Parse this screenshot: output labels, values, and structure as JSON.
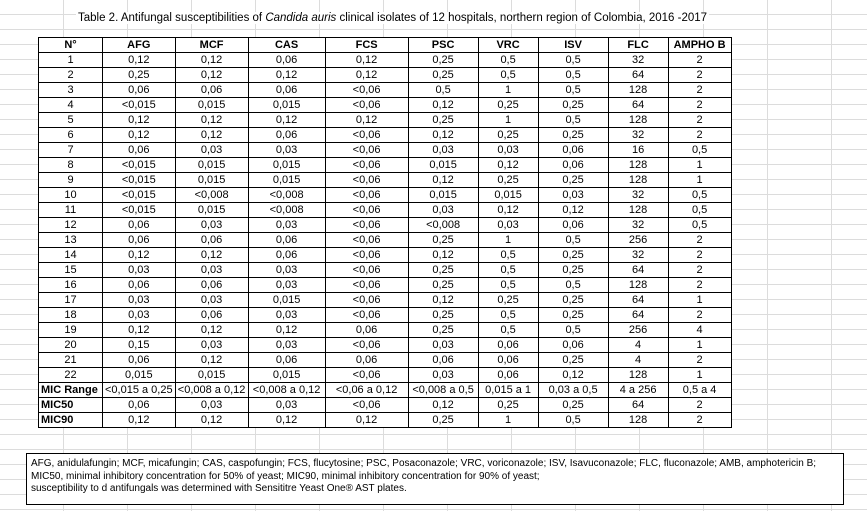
{
  "title": {
    "before": "Table 2. Antifungal susceptibilities of ",
    "italic": "Candida auris",
    "after": " clinical isolates of 12 hospitals, northern region of Colombia, 2016 -2017"
  },
  "table": {
    "header": [
      "N°",
      "AFG",
      "MCF",
      "CAS",
      "FCS",
      "PSC",
      "VRC",
      "ISV",
      "FLC",
      "AMPHO B"
    ],
    "rows": [
      [
        "1",
        "0,12",
        "0,12",
        "0,06",
        "0,12",
        "0,25",
        "0,5",
        "0,5",
        "32",
        "2"
      ],
      [
        "2",
        "0,25",
        "0,12",
        "0,12",
        "0,12",
        "0,25",
        "0,5",
        "0,5",
        "64",
        "2"
      ],
      [
        "3",
        "0,06",
        "0,06",
        "0,06",
        "<0,06",
        "0,5",
        "1",
        "0,5",
        "128",
        "2"
      ],
      [
        "4",
        "<0,015",
        "0,015",
        "0,015",
        "<0,06",
        "0,12",
        "0,25",
        "0,25",
        "64",
        "2"
      ],
      [
        "5",
        "0,12",
        "0,12",
        "0,12",
        "0,12",
        "0,25",
        "1",
        "0,5",
        "128",
        "2"
      ],
      [
        "6",
        "0,12",
        "0,12",
        "0,06",
        "<0,06",
        "0,12",
        "0,25",
        "0,25",
        "32",
        "2"
      ],
      [
        "7",
        "0,06",
        "0,03",
        "0,03",
        "<0,06",
        "0,03",
        "0,03",
        "0,06",
        "16",
        "0,5"
      ],
      [
        "8",
        "<0,015",
        "0,015",
        "0,015",
        "<0,06",
        "0,015",
        "0,12",
        "0,06",
        "128",
        "1"
      ],
      [
        "9",
        "<0,015",
        "0,015",
        "0,015",
        "<0,06",
        "0,12",
        "0,25",
        "0,25",
        "128",
        "1"
      ],
      [
        "10",
        "<0,015",
        "<0,008",
        "<0,008",
        "<0,06",
        "0,015",
        "0,015",
        "0,03",
        "32",
        "0,5"
      ],
      [
        "11",
        "<0,015",
        "0,015",
        "<0,008",
        "<0,06",
        "0,03",
        "0,12",
        "0,12",
        "128",
        "0,5"
      ],
      [
        "12",
        "0,06",
        "0,03",
        "0,03",
        "<0,06",
        "<0,008",
        "0,03",
        "0,06",
        "32",
        "0,5"
      ],
      [
        "13",
        "0,06",
        "0,06",
        "0,06",
        "<0,06",
        "0,25",
        "1",
        "0,5",
        "256",
        "2"
      ],
      [
        "14",
        "0,12",
        "0,12",
        "0,06",
        "<0,06",
        "0,12",
        "0,5",
        "0,25",
        "32",
        "2"
      ],
      [
        "15",
        "0,03",
        "0,03",
        "0,03",
        "<0,06",
        "0,25",
        "0,5",
        "0,25",
        "64",
        "2"
      ],
      [
        "16",
        "0,06",
        "0,06",
        "0,03",
        "<0,06",
        "0,25",
        "0,5",
        "0,5",
        "128",
        "2"
      ],
      [
        "17",
        "0,03",
        "0,03",
        "0,015",
        "<0,06",
        "0,12",
        "0,25",
        "0,25",
        "64",
        "1"
      ],
      [
        "18",
        "0,03",
        "0,06",
        "0,03",
        "<0,06",
        "0,25",
        "0,5",
        "0,25",
        "64",
        "2"
      ],
      [
        "19",
        "0,12",
        "0,12",
        "0,12",
        "0,06",
        "0,25",
        "0,5",
        "0,5",
        "256",
        "4"
      ],
      [
        "20",
        "0,15",
        "0,03",
        "0,03",
        "<0,06",
        "0,03",
        "0,06",
        "0,06",
        "4",
        "1"
      ],
      [
        "21",
        "0,06",
        "0,12",
        "0,06",
        "0,06",
        "0,06",
        "0,06",
        "0,25",
        "4",
        "2"
      ],
      [
        "22",
        "0,015",
        "0,015",
        "0,015",
        "<0,06",
        "0,03",
        "0,06",
        "0,12",
        "128",
        "1"
      ]
    ],
    "summary": [
      [
        "MIC Range",
        "<0,015 a 0,25",
        "<0,008 a 0,12",
        "<0,008 a 0,12",
        "<0,06 a 0,12",
        "<0,008 a 0,5",
        "0,015 a 1",
        "0,03 a 0,5",
        "4 a 256",
        "0,5 a 4"
      ],
      [
        "MIC50",
        "0,06",
        "0,03",
        "0,03",
        "<0,06",
        "0,12",
        "0,25",
        "0,25",
        "64",
        "2"
      ],
      [
        "MIC90",
        "0,12",
        "0,12",
        "0,12",
        "0,12",
        "0,25",
        "1",
        "0,5",
        "128",
        "2"
      ]
    ]
  },
  "notes": [
    "AFG, anidulafungin; MCF, micafungin; CAS, caspofungin; FCS, flucytosine; PSC, Posaconazole; VRC, voriconazole; ISV, Isavuconazole;  FLC, fluconazole;   AMB, amphotericin B;",
    "MIC50, minimal inhibitory concentration for 50% of yeast; MIC90, minimal inhibitory concentration for 90% of yeast;",
    "susceptibility to d antifungals was determined with Sensititre Yeast One® AST plates."
  ]
}
